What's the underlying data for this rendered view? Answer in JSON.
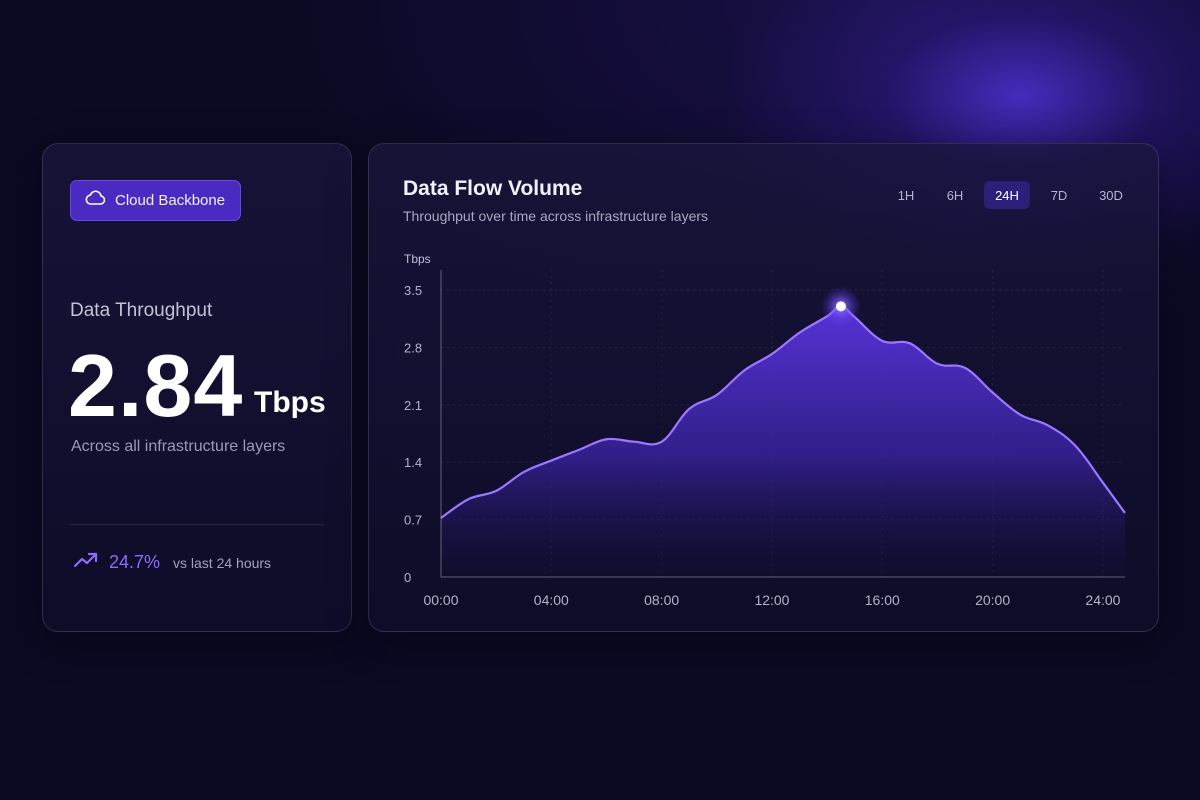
{
  "theme": {
    "accent": "#8c6bff",
    "badge_bg": "#4a2bc2",
    "background": "#0b0923",
    "line": "#9a78ff"
  },
  "summary": {
    "badge": {
      "label": "Cloud Backbone",
      "icon": "cloud-icon"
    },
    "title": "Data Throughput",
    "value": "2.84",
    "unit": "Tbps",
    "subtitle": "Across all infrastructure layers",
    "trend": {
      "icon": "trending-up-icon",
      "value": "24.7%",
      "note": "vs last 24 hours"
    }
  },
  "chart": {
    "title": "Data Flow Volume",
    "subtitle": "Throughput over time across infrastructure layers",
    "ranges": [
      "1H",
      "6H",
      "24H",
      "7D",
      "30D"
    ],
    "active_range": "24H"
  },
  "chart_data": {
    "type": "area",
    "ylabel": "Tbps",
    "yticks": [
      "0",
      "0.7",
      "1.4",
      "2.1",
      "2.8",
      "3.5"
    ],
    "ylim": [
      0,
      3.5
    ],
    "xticks": [
      "00:00",
      "04:00",
      "08:00",
      "12:00",
      "16:00",
      "20:00",
      "24:00"
    ],
    "xlim": [
      0,
      24.8
    ],
    "grid": true,
    "highlight": {
      "x": 14.5,
      "y": 3.3
    },
    "x": [
      0,
      1,
      2,
      3,
      4,
      5,
      6,
      7,
      8,
      9,
      10,
      11,
      12,
      13,
      14,
      14.5,
      15,
      16,
      17,
      18,
      19,
      20,
      21,
      22,
      23,
      24,
      24.8
    ],
    "y": [
      0.72,
      0.95,
      1.05,
      1.28,
      1.42,
      1.55,
      1.68,
      1.65,
      1.65,
      2.05,
      2.22,
      2.52,
      2.72,
      2.98,
      3.18,
      3.3,
      3.17,
      2.88,
      2.85,
      2.6,
      2.55,
      2.25,
      1.98,
      1.85,
      1.6,
      1.15,
      0.78
    ]
  }
}
